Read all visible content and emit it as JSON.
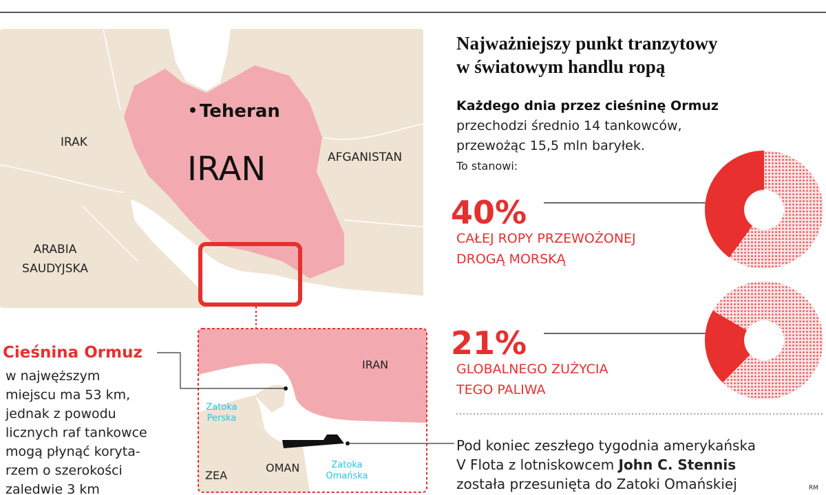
{
  "title": [
    "Najważniejszy punkt tranzytowy",
    "w światowym handlu ropą"
  ],
  "intro": {
    "bold": "Każdego dnia przez cieśninę Ormuz",
    "lines": [
      "przechodzi średnio 14 tankowców,",
      "przewożąc 15,5 mln baryłek."
    ],
    "lead": "To stanowi:"
  },
  "stats": [
    {
      "value": 40,
      "value_label": "40%",
      "lines": [
        "CAŁEJ ROPY PRZEWOŻONEJ",
        "DROGĄ MORSKĄ"
      ]
    },
    {
      "value": 21,
      "value_label": "21%",
      "lines": [
        "GLOBALNEGO ZUŻYCIA",
        "TEGO PALIWA"
      ]
    }
  ],
  "map_labels": {
    "teheran": "Teheran",
    "iran": "IRAN",
    "irak": "IRAK",
    "afganistan": "AFGANISTAN",
    "arabia": [
      "ARABIA",
      "SAUDYJSKA"
    ]
  },
  "inset_labels": {
    "iran": "IRAN",
    "zatoka_perska": [
      "Zatoka",
      "Perska"
    ],
    "zatoka_omanska": [
      "Zatoka",
      "Omańska"
    ],
    "oman": "OMAN",
    "zea": "ZEA"
  },
  "strait": {
    "title": "Cieśnina Ormuz",
    "lines": [
      "w najwęższym",
      "miejscu ma 53 km,",
      "jednak z powodu",
      "licznych raf tankowce",
      "mogą płynąć koryta-",
      "rzem o szerokości",
      "zaledwie 3 km"
    ]
  },
  "footer": {
    "line1": "Pod koniec zeszłego tygodnia amerykańska",
    "line2_pre": "V Flota z lotniskowcem ",
    "line2_bold": "John C. Stennis",
    "line3": "została przesunięta do Zatoki Omańskiej"
  },
  "credit": "RM"
}
